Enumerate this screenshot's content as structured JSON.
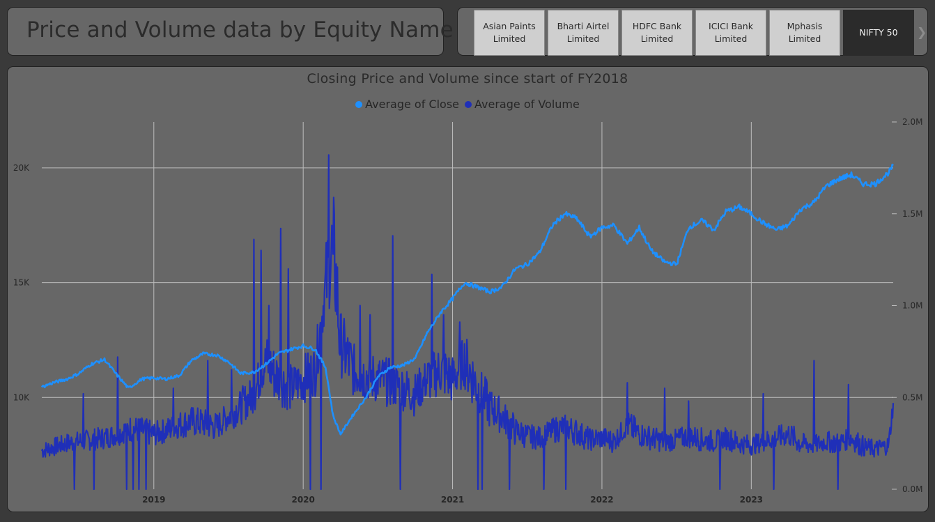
{
  "header": {
    "title": "Price and Volume data by Equity Name"
  },
  "slicer": {
    "items": [
      {
        "label": "Asian Paints Limited",
        "selected": false
      },
      {
        "label": "Bharti Airtel Limited",
        "selected": false
      },
      {
        "label": "HDFC Bank Limited",
        "selected": false
      },
      {
        "label": "ICICI Bank Limited",
        "selected": false
      },
      {
        "label": "Mphasis Limited",
        "selected": false
      },
      {
        "label": "NIFTY 50",
        "selected": true
      }
    ],
    "next_icon": "chevron-right-icon"
  },
  "chart_data": {
    "type": "line",
    "title": "Closing Price and Volume since start of FY2018",
    "legend_position": "top-center",
    "grid": true,
    "x_axis": {
      "ticks": [
        "2019",
        "2020",
        "2021",
        "2022",
        "2023"
      ],
      "range": [
        2018.25,
        2023.95
      ]
    },
    "y_left": {
      "ticks": [
        10000,
        15000,
        20000
      ],
      "tick_labels": [
        "10K",
        "15K",
        "20K"
      ],
      "range": [
        6000,
        22000
      ]
    },
    "y_right": {
      "ticks": [
        0,
        500000,
        1000000,
        1500000,
        2000000
      ],
      "tick_labels": [
        "0.0M",
        "0.5M",
        "1.0M",
        "1.5M",
        "2.0M"
      ],
      "range": [
        0,
        2000000
      ]
    },
    "series": [
      {
        "name": "Average of Close",
        "axis": "left",
        "color": "#1e90ff",
        "points": [
          [
            2018.25,
            10450
          ],
          [
            2018.33,
            10650
          ],
          [
            2018.42,
            10800
          ],
          [
            2018.5,
            11050
          ],
          [
            2018.58,
            11450
          ],
          [
            2018.67,
            11650
          ],
          [
            2018.75,
            11000
          ],
          [
            2018.83,
            10400
          ],
          [
            2018.92,
            10800
          ],
          [
            2019.0,
            10850
          ],
          [
            2019.08,
            10800
          ],
          [
            2019.17,
            10950
          ],
          [
            2019.25,
            11600
          ],
          [
            2019.33,
            11900
          ],
          [
            2019.42,
            11850
          ],
          [
            2019.5,
            11550
          ],
          [
            2019.58,
            11050
          ],
          [
            2019.67,
            11100
          ],
          [
            2019.75,
            11450
          ],
          [
            2019.83,
            11900
          ],
          [
            2019.92,
            12100
          ],
          [
            2020.0,
            12250
          ],
          [
            2020.08,
            12100
          ],
          [
            2020.15,
            11300
          ],
          [
            2020.2,
            9200
          ],
          [
            2020.25,
            8400
          ],
          [
            2020.33,
            9200
          ],
          [
            2020.42,
            10000
          ],
          [
            2020.5,
            10900
          ],
          [
            2020.58,
            11300
          ],
          [
            2020.67,
            11400
          ],
          [
            2020.75,
            11700
          ],
          [
            2020.83,
            12800
          ],
          [
            2020.92,
            13700
          ],
          [
            2021.0,
            14300
          ],
          [
            2021.08,
            15000
          ],
          [
            2021.17,
            14800
          ],
          [
            2021.25,
            14600
          ],
          [
            2021.33,
            14800
          ],
          [
            2021.42,
            15600
          ],
          [
            2021.5,
            15800
          ],
          [
            2021.58,
            16300
          ],
          [
            2021.67,
            17500
          ],
          [
            2021.75,
            18000
          ],
          [
            2021.83,
            17800
          ],
          [
            2021.92,
            17000
          ],
          [
            2022.0,
            17400
          ],
          [
            2022.08,
            17500
          ],
          [
            2022.17,
            16700
          ],
          [
            2022.25,
            17400
          ],
          [
            2022.33,
            16400
          ],
          [
            2022.42,
            15900
          ],
          [
            2022.5,
            15800
          ],
          [
            2022.58,
            17400
          ],
          [
            2022.67,
            17700
          ],
          [
            2022.75,
            17300
          ],
          [
            2022.83,
            18100
          ],
          [
            2022.92,
            18300
          ],
          [
            2023.0,
            18000
          ],
          [
            2023.08,
            17600
          ],
          [
            2023.17,
            17300
          ],
          [
            2023.25,
            17500
          ],
          [
            2023.33,
            18200
          ],
          [
            2023.42,
            18500
          ],
          [
            2023.5,
            19200
          ],
          [
            2023.58,
            19500
          ],
          [
            2023.67,
            19700
          ],
          [
            2023.75,
            19300
          ],
          [
            2023.83,
            19300
          ],
          [
            2023.92,
            19800
          ],
          [
            2023.95,
            20100
          ]
        ]
      },
      {
        "name": "Average of Volume",
        "axis": "right",
        "color": "#1f2fb8",
        "points": [
          [
            2018.25,
            210000
          ],
          [
            2018.33,
            230000
          ],
          [
            2018.42,
            250000
          ],
          [
            2018.5,
            260000
          ],
          [
            2018.58,
            270000
          ],
          [
            2018.67,
            280000
          ],
          [
            2018.75,
            300000
          ],
          [
            2018.83,
            330000
          ],
          [
            2018.92,
            320000
          ],
          [
            2019.0,
            300000
          ],
          [
            2019.08,
            320000
          ],
          [
            2019.17,
            350000
          ],
          [
            2019.25,
            370000
          ],
          [
            2019.33,
            360000
          ],
          [
            2019.42,
            340000
          ],
          [
            2019.5,
            400000
          ],
          [
            2019.58,
            450000
          ],
          [
            2019.67,
            520000
          ],
          [
            2019.75,
            700000
          ],
          [
            2019.83,
            600000
          ],
          [
            2019.92,
            550000
          ],
          [
            2020.0,
            600000
          ],
          [
            2020.08,
            650000
          ],
          [
            2020.15,
            1100000
          ],
          [
            2020.2,
            1350000
          ],
          [
            2020.25,
            800000
          ],
          [
            2020.33,
            650000
          ],
          [
            2020.42,
            620000
          ],
          [
            2020.5,
            600000
          ],
          [
            2020.58,
            580000
          ],
          [
            2020.67,
            550000
          ],
          [
            2020.75,
            520000
          ],
          [
            2020.83,
            600000
          ],
          [
            2020.92,
            650000
          ],
          [
            2021.0,
            600000
          ],
          [
            2021.08,
            700000
          ],
          [
            2021.17,
            550000
          ],
          [
            2021.25,
            450000
          ],
          [
            2021.33,
            400000
          ],
          [
            2021.42,
            320000
          ],
          [
            2021.5,
            290000
          ],
          [
            2021.58,
            280000
          ],
          [
            2021.67,
            320000
          ],
          [
            2021.75,
            340000
          ],
          [
            2021.83,
            310000
          ],
          [
            2021.92,
            270000
          ],
          [
            2022.0,
            280000
          ],
          [
            2022.08,
            260000
          ],
          [
            2022.17,
            350000
          ],
          [
            2022.25,
            300000
          ],
          [
            2022.33,
            280000
          ],
          [
            2022.42,
            260000
          ],
          [
            2022.5,
            270000
          ],
          [
            2022.58,
            290000
          ],
          [
            2022.67,
            270000
          ],
          [
            2022.75,
            260000
          ],
          [
            2022.83,
            280000
          ],
          [
            2022.92,
            250000
          ],
          [
            2023.0,
            240000
          ],
          [
            2023.08,
            260000
          ],
          [
            2023.17,
            280000
          ],
          [
            2023.25,
            300000
          ],
          [
            2023.33,
            250000
          ],
          [
            2023.42,
            240000
          ],
          [
            2023.5,
            260000
          ],
          [
            2023.58,
            250000
          ],
          [
            2023.67,
            280000
          ],
          [
            2023.75,
            230000
          ],
          [
            2023.83,
            220000
          ],
          [
            2023.92,
            240000
          ],
          [
            2023.95,
            470000
          ]
        ],
        "spikes": [
          [
            2018.47,
            0
          ],
          [
            2018.53,
            520000
          ],
          [
            2018.6,
            0
          ],
          [
            2018.76,
            720000
          ],
          [
            2018.82,
            0
          ],
          [
            2018.86,
            0
          ],
          [
            2018.9,
            0
          ],
          [
            2018.95,
            0
          ],
          [
            2019.13,
            550000
          ],
          [
            2019.36,
            700000
          ],
          [
            2019.52,
            650000
          ],
          [
            2019.67,
            1360000
          ],
          [
            2019.72,
            1300000
          ],
          [
            2019.77,
            1000000
          ],
          [
            2019.85,
            1420000
          ],
          [
            2019.9,
            1200000
          ],
          [
            2020.05,
            0
          ],
          [
            2020.12,
            0
          ],
          [
            2020.17,
            1820000
          ],
          [
            2020.2,
            1280000
          ],
          [
            2020.38,
            1000000
          ],
          [
            2020.45,
            950000
          ],
          [
            2020.6,
            1380000
          ],
          [
            2020.65,
            0
          ],
          [
            2020.86,
            1170000
          ],
          [
            2020.94,
            950000
          ],
          [
            2021.05,
            910000
          ],
          [
            2021.17,
            0
          ],
          [
            2021.2,
            0
          ],
          [
            2021.38,
            0
          ],
          [
            2021.61,
            0
          ],
          [
            2021.76,
            0
          ],
          [
            2022.17,
            580000
          ],
          [
            2022.42,
            550000
          ],
          [
            2022.58,
            480000
          ],
          [
            2022.79,
            0
          ],
          [
            2023.08,
            520000
          ],
          [
            2023.15,
            0
          ],
          [
            2023.42,
            700000
          ],
          [
            2023.58,
            0
          ],
          [
            2023.65,
            570000
          ]
        ]
      }
    ]
  }
}
